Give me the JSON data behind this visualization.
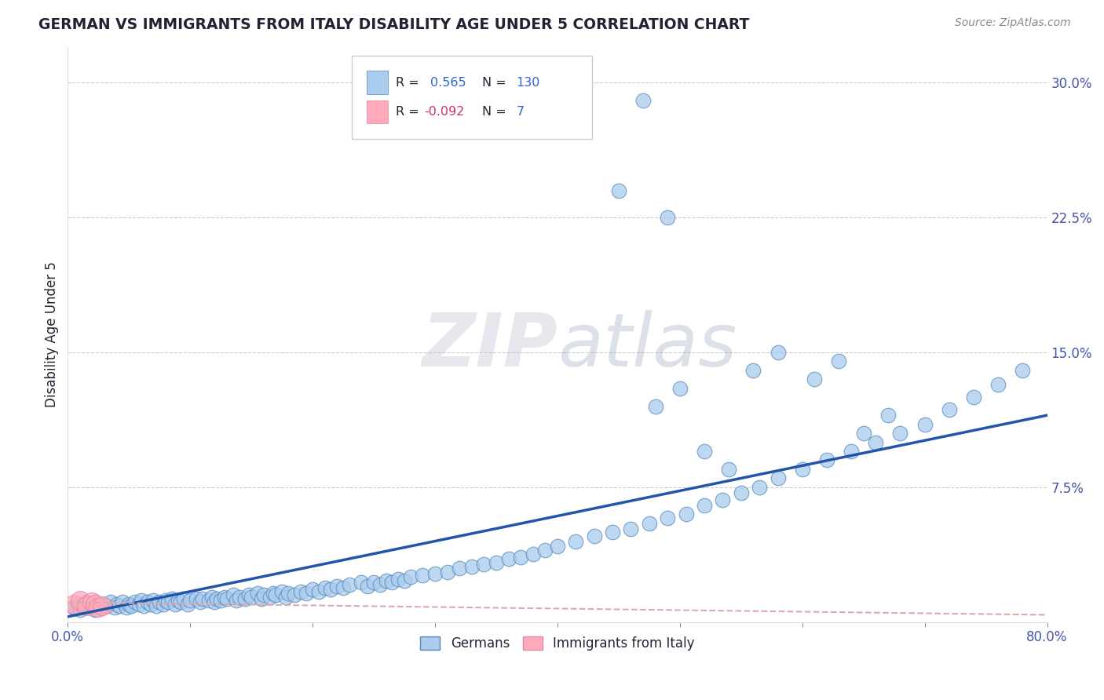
{
  "title": "GERMAN VS IMMIGRANTS FROM ITALY DISABILITY AGE UNDER 5 CORRELATION CHART",
  "source": "Source: ZipAtlas.com",
  "ylabel": "Disability Age Under 5",
  "xlim": [
    0.0,
    0.8
  ],
  "ylim": [
    0.0,
    0.32
  ],
  "ytick_positions": [
    0.075,
    0.15,
    0.225,
    0.3
  ],
  "ytick_labels": [
    "7.5%",
    "15.0%",
    "22.5%",
    "30.0%"
  ],
  "german_R": 0.565,
  "german_N": 130,
  "italy_R": -0.092,
  "italy_N": 7,
  "blue_fill": "#AACCEE",
  "blue_edge": "#5588BB",
  "pink_fill": "#FFAABB",
  "pink_edge": "#DD88AA",
  "blue_line": "#2255AA",
  "pink_line": "#DDAAAA",
  "grid_color": "#CCCCCC",
  "title_color": "#222233",
  "axis_color": "#4455AA",
  "legend_blue": "#3366CC",
  "legend_pink": "#CC3366",
  "legend_green": "#33AA33",
  "watermark_color": "#DDDDEE",
  "german_x": [
    0.005,
    0.008,
    0.01,
    0.012,
    0.015,
    0.018,
    0.02,
    0.022,
    0.025,
    0.028,
    0.03,
    0.032,
    0.035,
    0.038,
    0.04,
    0.042,
    0.045,
    0.048,
    0.05,
    0.052,
    0.055,
    0.058,
    0.06,
    0.062,
    0.065,
    0.068,
    0.07,
    0.072,
    0.075,
    0.078,
    0.08,
    0.082,
    0.085,
    0.088,
    0.09,
    0.092,
    0.095,
    0.098,
    0.1,
    0.105,
    0.108,
    0.11,
    0.115,
    0.118,
    0.12,
    0.122,
    0.125,
    0.128,
    0.13,
    0.135,
    0.138,
    0.14,
    0.145,
    0.148,
    0.15,
    0.155,
    0.158,
    0.16,
    0.165,
    0.168,
    0.17,
    0.175,
    0.178,
    0.18,
    0.185,
    0.19,
    0.195,
    0.2,
    0.205,
    0.21,
    0.215,
    0.22,
    0.225,
    0.23,
    0.24,
    0.245,
    0.25,
    0.255,
    0.26,
    0.265,
    0.27,
    0.275,
    0.28,
    0.29,
    0.3,
    0.31,
    0.32,
    0.33,
    0.34,
    0.35,
    0.36,
    0.37,
    0.38,
    0.39,
    0.4,
    0.415,
    0.43,
    0.445,
    0.46,
    0.475,
    0.49,
    0.505,
    0.52,
    0.535,
    0.55,
    0.565,
    0.58,
    0.6,
    0.62,
    0.64,
    0.66,
    0.68,
    0.7,
    0.72,
    0.74,
    0.76,
    0.78,
    0.48,
    0.5,
    0.52,
    0.54,
    0.56,
    0.58,
    0.61,
    0.63,
    0.65,
    0.67,
    0.45,
    0.47,
    0.49
  ],
  "german_y": [
    0.008,
    0.01,
    0.007,
    0.009,
    0.011,
    0.008,
    0.01,
    0.007,
    0.009,
    0.008,
    0.01,
    0.009,
    0.011,
    0.008,
    0.01,
    0.009,
    0.011,
    0.008,
    0.01,
    0.009,
    0.011,
    0.01,
    0.012,
    0.009,
    0.011,
    0.01,
    0.012,
    0.009,
    0.011,
    0.01,
    0.012,
    0.011,
    0.013,
    0.01,
    0.012,
    0.011,
    0.013,
    0.01,
    0.012,
    0.013,
    0.011,
    0.013,
    0.012,
    0.014,
    0.011,
    0.013,
    0.012,
    0.014,
    0.013,
    0.015,
    0.012,
    0.014,
    0.013,
    0.015,
    0.014,
    0.016,
    0.013,
    0.015,
    0.014,
    0.016,
    0.015,
    0.017,
    0.014,
    0.016,
    0.015,
    0.017,
    0.016,
    0.018,
    0.017,
    0.019,
    0.018,
    0.02,
    0.019,
    0.021,
    0.022,
    0.02,
    0.022,
    0.021,
    0.023,
    0.022,
    0.024,
    0.023,
    0.025,
    0.026,
    0.027,
    0.028,
    0.03,
    0.031,
    0.032,
    0.033,
    0.035,
    0.036,
    0.038,
    0.04,
    0.042,
    0.045,
    0.048,
    0.05,
    0.052,
    0.055,
    0.058,
    0.06,
    0.065,
    0.068,
    0.072,
    0.075,
    0.08,
    0.085,
    0.09,
    0.095,
    0.1,
    0.105,
    0.11,
    0.118,
    0.125,
    0.132,
    0.14,
    0.12,
    0.13,
    0.095,
    0.085,
    0.14,
    0.15,
    0.135,
    0.145,
    0.105,
    0.115,
    0.24,
    0.29,
    0.225
  ],
  "italy_x": [
    0.005,
    0.01,
    0.015,
    0.02,
    0.022,
    0.025,
    0.028
  ],
  "italy_y": [
    0.01,
    0.012,
    0.009,
    0.011,
    0.01,
    0.008,
    0.009
  ],
  "blue_trend_x0": 0.0,
  "blue_trend_x1": 0.8,
  "blue_trend_y0": 0.003,
  "blue_trend_y1": 0.115,
  "pink_trend_x0": 0.0,
  "pink_trend_x1": 0.8,
  "pink_trend_y0": 0.011,
  "pink_trend_y1": 0.004
}
